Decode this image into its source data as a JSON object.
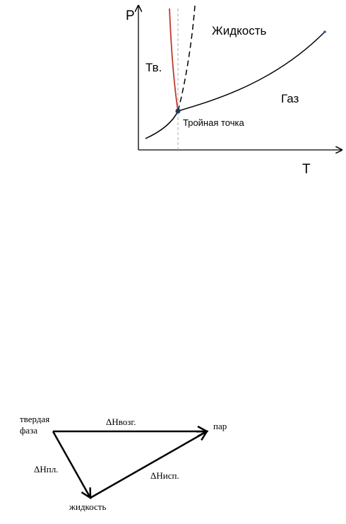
{
  "phase_diagram": {
    "y_axis_label": "P",
    "x_axis_label": "T",
    "regions": {
      "solid": "Тв.",
      "liquid": "Жидкость",
      "gas": "Газ"
    },
    "triple_point_label": "Тройная точка"
  },
  "transitions": {
    "nodes": [
      {
        "label_lines": [
          "твердая",
          "фаза"
        ]
      },
      {
        "label_lines": [
          "пар"
        ]
      },
      {
        "label_lines": [
          "жидкость"
        ]
      }
    ],
    "edges": [
      {
        "label": "ΔHвозг."
      },
      {
        "label": "ΔHпл."
      },
      {
        "label": "ΔHисп."
      }
    ]
  }
}
